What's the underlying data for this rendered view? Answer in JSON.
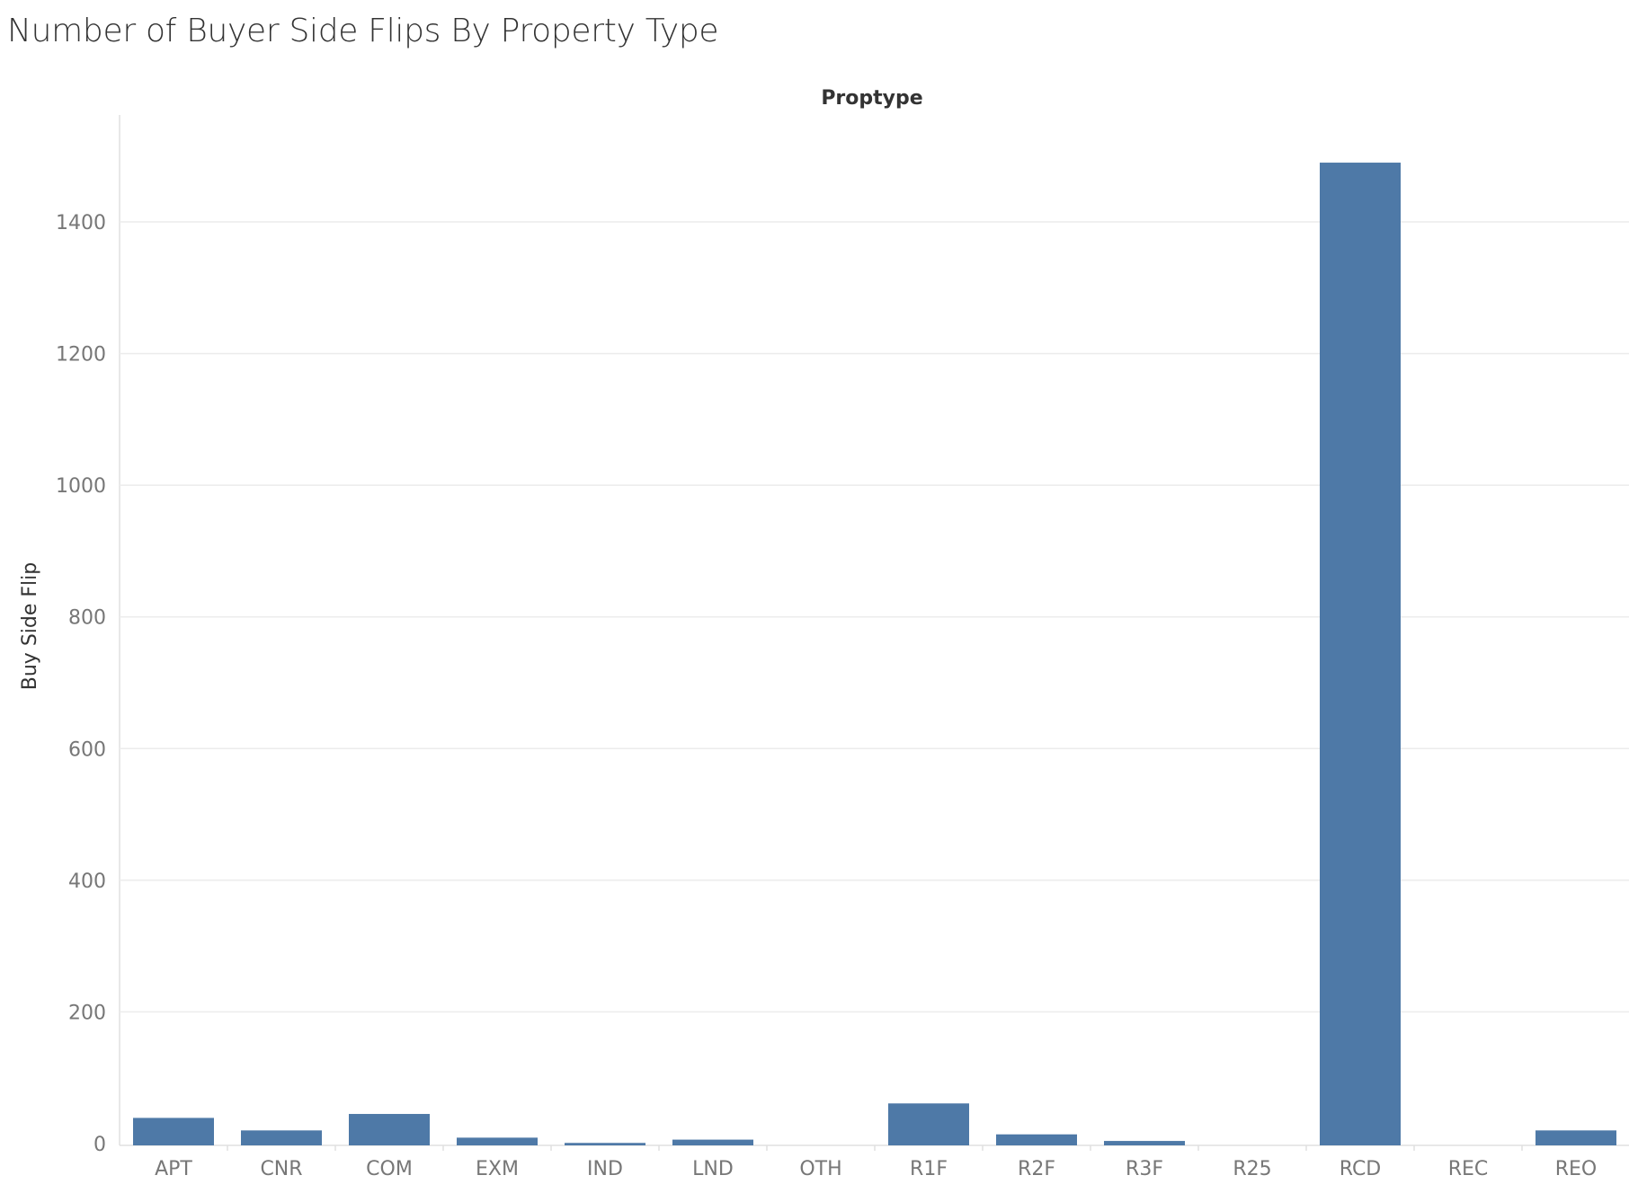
{
  "chart_data": {
    "type": "bar",
    "title": "Number of Buyer Side Flips By Property Type",
    "column_header": "Proptype",
    "ylabel": "Buy Side Flip",
    "categories": [
      "APT",
      "CNR",
      "COM",
      "EXM",
      "IND",
      "LND",
      "OTH",
      "R1F",
      "R2F",
      "R3F",
      "R25",
      "RCD",
      "REC",
      "REO"
    ],
    "values": [
      39,
      20,
      45,
      9,
      1,
      6,
      0,
      61,
      14,
      4,
      0,
      1490,
      0,
      20
    ],
    "yticks": [
      0,
      200,
      400,
      600,
      800,
      1000,
      1200,
      1400
    ],
    "ylim": [
      -20,
      1550
    ],
    "grid": true,
    "bar_color": "#4e79a7"
  }
}
